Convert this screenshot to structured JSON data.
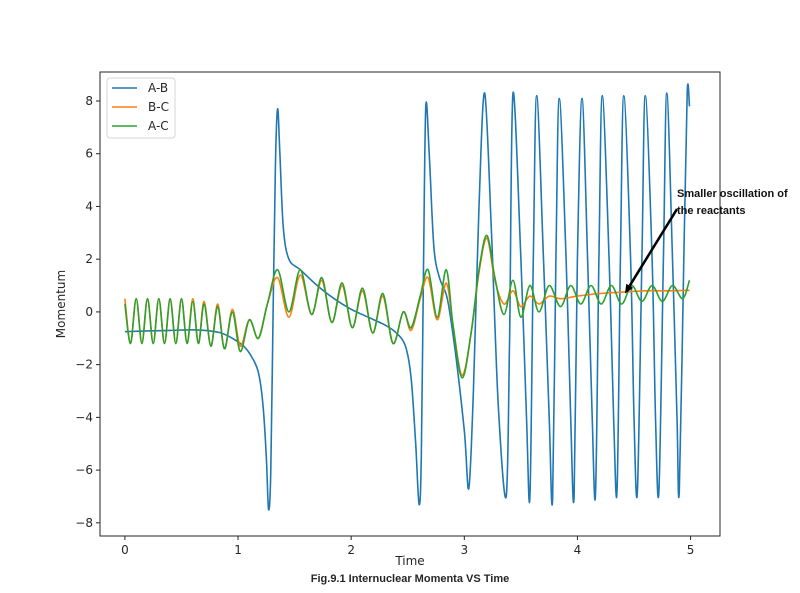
{
  "chart_data": {
    "type": "line",
    "title": "",
    "caption": "Fig.9.1 Internuclear Momenta VS Time",
    "xlabel": "Time",
    "ylabel": "Momentum",
    "xlim": [
      -0.22,
      5.26
    ],
    "ylim": [
      -8.5,
      9.1
    ],
    "xticks": [
      0,
      1,
      2,
      3,
      4,
      5
    ],
    "yticks": [
      -8,
      -6,
      -4,
      -2,
      0,
      2,
      4,
      6,
      8
    ],
    "xtick_labels": [
      "0",
      "1",
      "2",
      "3",
      "4",
      "5"
    ],
    "ytick_labels": [
      "−8",
      "−6",
      "−4",
      "−2",
      "0",
      "2",
      "4",
      "6",
      "8"
    ],
    "grid": false,
    "legend": {
      "placement": "top-left"
    },
    "annotation": {
      "text_line1": "Smaller oscillation of",
      "text_line2": "the reactants",
      "arrow_from": [
        4.88,
        3.9
      ],
      "arrow_to": [
        4.42,
        0.7
      ]
    },
    "series": [
      {
        "name": "A-B",
        "color": "#1f77b4",
        "points": [
          [
            0,
            -0.75
          ],
          [
            0.2,
            -0.72
          ],
          [
            0.4,
            -0.7
          ],
          [
            0.6,
            -0.68
          ],
          [
            0.75,
            -0.72
          ],
          [
            0.85,
            -0.8
          ],
          [
            0.95,
            -1.0
          ],
          [
            1.05,
            -1.3
          ],
          [
            1.12,
            -1.7
          ],
          [
            1.18,
            -2.3
          ],
          [
            1.22,
            -3.5
          ],
          [
            1.25,
            -5.5
          ],
          [
            1.27,
            -7.5
          ],
          [
            1.29,
            -6.0
          ],
          [
            1.31,
            0.0
          ],
          [
            1.33,
            5.5
          ],
          [
            1.35,
            7.7
          ],
          [
            1.37,
            6.0
          ],
          [
            1.4,
            3.2
          ],
          [
            1.45,
            2.0
          ],
          [
            1.55,
            1.6
          ],
          [
            1.7,
            1.0
          ],
          [
            1.85,
            0.5
          ],
          [
            2.0,
            0.1
          ],
          [
            2.15,
            -0.2
          ],
          [
            2.3,
            -0.5
          ],
          [
            2.4,
            -0.8
          ],
          [
            2.48,
            -1.3
          ],
          [
            2.53,
            -2.5
          ],
          [
            2.57,
            -5.0
          ],
          [
            2.6,
            -7.3
          ],
          [
            2.62,
            -5.5
          ],
          [
            2.64,
            2.0
          ],
          [
            2.66,
            7.8
          ],
          [
            2.69,
            6.0
          ],
          [
            2.73,
            2.5
          ],
          [
            2.78,
            1.3
          ],
          [
            2.85,
            0.5
          ],
          [
            2.92,
            -1.5
          ],
          [
            3.0,
            -4.5
          ],
          [
            3.04,
            -6.7
          ],
          [
            3.08,
            -3.0
          ],
          [
            3.13,
            4.0
          ],
          [
            3.18,
            8.3
          ],
          [
            3.24,
            3.0
          ],
          [
            3.3,
            -3.5
          ],
          [
            3.37,
            -7.0
          ],
          [
            3.4,
            -1.0
          ],
          [
            3.43,
            8.3
          ],
          [
            3.5,
            2.0
          ],
          [
            3.55,
            -4.0
          ],
          [
            3.58,
            -7.0
          ],
          [
            3.61,
            2.0
          ],
          [
            3.64,
            8.2
          ],
          [
            3.7,
            2.0
          ],
          [
            3.75,
            -4.0
          ],
          [
            3.78,
            -7.1
          ],
          [
            3.81,
            2.0
          ],
          [
            3.84,
            8.1
          ],
          [
            3.9,
            2.0
          ],
          [
            3.94,
            -4.0
          ],
          [
            3.97,
            -7.0
          ],
          [
            4.0,
            2.0
          ],
          [
            4.04,
            8.1
          ],
          [
            4.09,
            2.0
          ],
          [
            4.13,
            -4.0
          ],
          [
            4.16,
            -6.9
          ],
          [
            4.19,
            2.0
          ],
          [
            4.22,
            8.2
          ],
          [
            4.28,
            2.0
          ],
          [
            4.32,
            -4.0
          ],
          [
            4.35,
            -6.8
          ],
          [
            4.38,
            2.0
          ],
          [
            4.41,
            8.2
          ],
          [
            4.47,
            2.0
          ],
          [
            4.5,
            -4.0
          ],
          [
            4.53,
            -6.8
          ],
          [
            4.57,
            2.0
          ],
          [
            4.6,
            8.2
          ],
          [
            4.66,
            2.0
          ],
          [
            4.69,
            -4.0
          ],
          [
            4.72,
            -6.8
          ],
          [
            4.76,
            2.0
          ],
          [
            4.79,
            8.3
          ],
          [
            4.84,
            2.0
          ],
          [
            4.88,
            -4.0
          ],
          [
            4.9,
            -6.8
          ],
          [
            4.94,
            2.0
          ],
          [
            4.97,
            8.3
          ],
          [
            4.99,
            7.8
          ]
        ]
      },
      {
        "name": "B-C",
        "color": "#ff7f0e",
        "points": [
          [
            0,
            0.5
          ],
          [
            0.05,
            -1.2
          ],
          [
            0.1,
            0.5
          ],
          [
            0.15,
            -1.2
          ],
          [
            0.2,
            0.5
          ],
          [
            0.25,
            -1.2
          ],
          [
            0.3,
            0.5
          ],
          [
            0.35,
            -1.2
          ],
          [
            0.4,
            0.5
          ],
          [
            0.45,
            -1.2
          ],
          [
            0.5,
            0.5
          ],
          [
            0.55,
            -1.2
          ],
          [
            0.6,
            0.5
          ],
          [
            0.65,
            -1.2
          ],
          [
            0.7,
            0.4
          ],
          [
            0.76,
            -1.3
          ],
          [
            0.82,
            0.3
          ],
          [
            0.88,
            -1.4
          ],
          [
            0.95,
            0.1
          ],
          [
            1.02,
            -1.3
          ],
          [
            1.1,
            -0.3
          ],
          [
            1.18,
            -1.0
          ],
          [
            1.26,
            0.3
          ],
          [
            1.35,
            1.3
          ],
          [
            1.45,
            -0.2
          ],
          [
            1.55,
            1.4
          ],
          [
            1.65,
            -0.1
          ],
          [
            1.74,
            1.2
          ],
          [
            1.83,
            -0.4
          ],
          [
            1.92,
            1.0
          ],
          [
            2.01,
            -0.6
          ],
          [
            2.1,
            0.8
          ],
          [
            2.19,
            -0.8
          ],
          [
            2.28,
            0.6
          ],
          [
            2.37,
            -1.2
          ],
          [
            2.46,
            0.0
          ],
          [
            2.53,
            -0.7
          ],
          [
            2.61,
            0.5
          ],
          [
            2.68,
            1.3
          ],
          [
            2.76,
            -0.3
          ],
          [
            2.84,
            1.1
          ],
          [
            2.9,
            -0.5
          ],
          [
            2.98,
            -2.4
          ],
          [
            3.06,
            -0.8
          ],
          [
            3.13,
            1.5
          ],
          [
            3.2,
            2.8
          ],
          [
            3.27,
            1.2
          ],
          [
            3.35,
            0.3
          ],
          [
            3.43,
            0.8
          ],
          [
            3.5,
            0.2
          ],
          [
            3.58,
            0.6
          ],
          [
            3.66,
            0.3
          ],
          [
            3.75,
            0.6
          ],
          [
            3.85,
            0.5
          ],
          [
            4.0,
            0.6
          ],
          [
            4.2,
            0.7
          ],
          [
            4.4,
            0.75
          ],
          [
            4.6,
            0.8
          ],
          [
            4.8,
            0.8
          ],
          [
            4.99,
            0.82
          ]
        ]
      },
      {
        "name": "A-C",
        "color": "#2ca02c",
        "points": [
          [
            0,
            0.3
          ],
          [
            0.05,
            -1.2
          ],
          [
            0.1,
            0.5
          ],
          [
            0.15,
            -1.2
          ],
          [
            0.2,
            0.5
          ],
          [
            0.25,
            -1.2
          ],
          [
            0.3,
            0.5
          ],
          [
            0.35,
            -1.2
          ],
          [
            0.4,
            0.5
          ],
          [
            0.45,
            -1.2
          ],
          [
            0.5,
            0.5
          ],
          [
            0.55,
            -1.2
          ],
          [
            0.6,
            0.4
          ],
          [
            0.65,
            -1.2
          ],
          [
            0.7,
            0.3
          ],
          [
            0.76,
            -1.3
          ],
          [
            0.82,
            0.2
          ],
          [
            0.88,
            -1.4
          ],
          [
            0.95,
            0.0
          ],
          [
            1.02,
            -1.5
          ],
          [
            1.1,
            -0.3
          ],
          [
            1.18,
            -1.0
          ],
          [
            1.26,
            0.3
          ],
          [
            1.35,
            1.6
          ],
          [
            1.45,
            0.0
          ],
          [
            1.55,
            1.6
          ],
          [
            1.65,
            -0.1
          ],
          [
            1.74,
            1.3
          ],
          [
            1.83,
            -0.4
          ],
          [
            1.92,
            1.1
          ],
          [
            2.01,
            -0.6
          ],
          [
            2.1,
            0.9
          ],
          [
            2.19,
            -0.8
          ],
          [
            2.28,
            0.7
          ],
          [
            2.37,
            -1.2
          ],
          [
            2.46,
            0.0
          ],
          [
            2.53,
            -0.6
          ],
          [
            2.61,
            0.6
          ],
          [
            2.68,
            1.6
          ],
          [
            2.76,
            -0.2
          ],
          [
            2.84,
            1.6
          ],
          [
            2.9,
            -0.5
          ],
          [
            2.98,
            -2.5
          ],
          [
            3.06,
            -0.8
          ],
          [
            3.13,
            1.6
          ],
          [
            3.2,
            2.9
          ],
          [
            3.27,
            1.3
          ],
          [
            3.35,
            -0.1
          ],
          [
            3.43,
            1.2
          ],
          [
            3.5,
            -0.2
          ],
          [
            3.58,
            1.0
          ],
          [
            3.66,
            0.0
          ],
          [
            3.75,
            1.0
          ],
          [
            3.85,
            0.2
          ],
          [
            3.94,
            1.0
          ],
          [
            4.03,
            0.3
          ],
          [
            4.12,
            1.0
          ],
          [
            4.21,
            0.3
          ],
          [
            4.3,
            1.0
          ],
          [
            4.39,
            0.3
          ],
          [
            4.48,
            1.0
          ],
          [
            4.57,
            0.4
          ],
          [
            4.66,
            1.0
          ],
          [
            4.75,
            0.4
          ],
          [
            4.84,
            1.0
          ],
          [
            4.93,
            0.5
          ],
          [
            4.99,
            1.2
          ]
        ]
      }
    ]
  }
}
